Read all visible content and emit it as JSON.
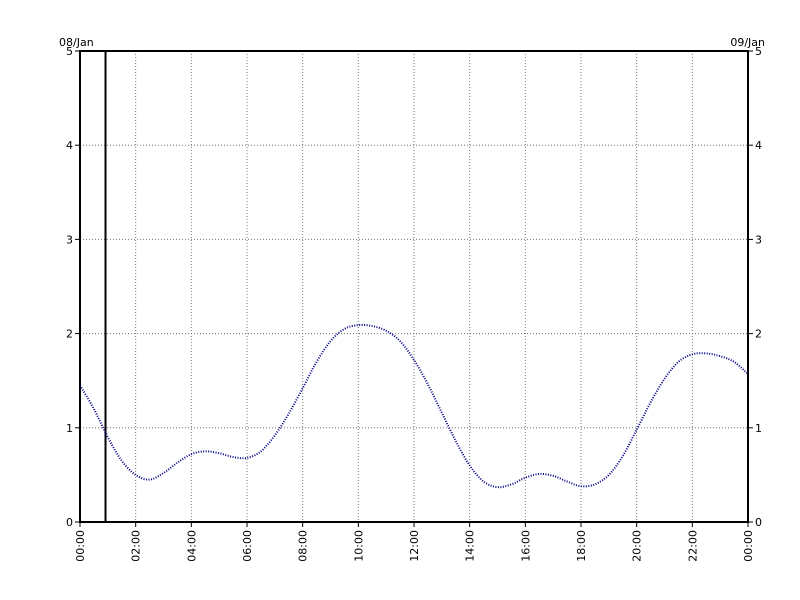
{
  "chart_data": {
    "type": "line",
    "title": "",
    "xlabel": "",
    "ylabel": "",
    "date_start_label": "08/Jan",
    "date_end_label": "09/Jan",
    "x_tick_labels": [
      "00:00",
      "02:00",
      "04:00",
      "06:00",
      "08:00",
      "10:00",
      "12:00",
      "14:00",
      "16:00",
      "18:00",
      "20:00",
      "22:00",
      "00:00"
    ],
    "y_tick_labels": [
      "0",
      "1",
      "2",
      "3",
      "4",
      "5"
    ],
    "xlim": [
      "08/Jan 00:00",
      "09/Jan 00:00"
    ],
    "ylim": [
      0,
      5
    ],
    "grid": true,
    "current_time_marker": "08/Jan 00:55",
    "series": [
      {
        "color": "#00008b",
        "style": "dotted",
        "x": [
          "00:00",
          "00:30",
          "01:00",
          "01:30",
          "02:00",
          "02:30",
          "03:00",
          "03:30",
          "04:00",
          "04:30",
          "05:00",
          "05:30",
          "06:00",
          "06:30",
          "07:00",
          "07:30",
          "08:00",
          "08:30",
          "09:00",
          "09:30",
          "10:00",
          "10:30",
          "11:00",
          "11:30",
          "12:00",
          "12:30",
          "13:00",
          "13:30",
          "14:00",
          "14:30",
          "15:00",
          "15:30",
          "16:00",
          "16:30",
          "17:00",
          "17:30",
          "18:00",
          "18:30",
          "19:00",
          "19:30",
          "20:00",
          "20:30",
          "21:00",
          "21:30",
          "22:00",
          "22:30",
          "23:00",
          "23:30",
          "24:00"
        ],
        "values": [
          1.45,
          1.2,
          0.9,
          0.65,
          0.5,
          0.45,
          0.52,
          0.63,
          0.72,
          0.75,
          0.73,
          0.69,
          0.68,
          0.75,
          0.92,
          1.15,
          1.42,
          1.7,
          1.92,
          2.05,
          2.09,
          2.08,
          2.03,
          1.92,
          1.72,
          1.46,
          1.16,
          0.86,
          0.6,
          0.43,
          0.37,
          0.4,
          0.47,
          0.51,
          0.49,
          0.43,
          0.38,
          0.4,
          0.5,
          0.7,
          0.98,
          1.27,
          1.52,
          1.7,
          1.78,
          1.79,
          1.76,
          1.7,
          1.57
        ]
      }
    ]
  }
}
